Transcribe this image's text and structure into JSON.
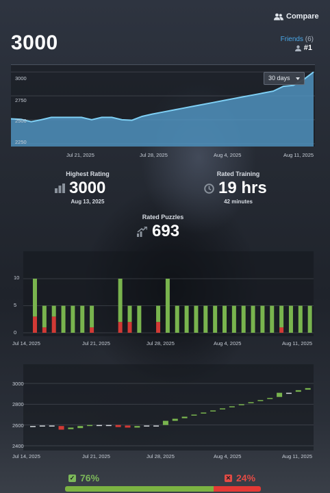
{
  "header": {
    "compare_label": "Compare",
    "rating": "3000",
    "friends_label": "Friends",
    "friends_count": "(6)",
    "rank": "#1"
  },
  "rating_chart": {
    "range_select": "30 days",
    "y_ticks": [
      "3000",
      "2750",
      "2500",
      "2250"
    ],
    "x_ticks": [
      "Jul 21, 2025",
      "Jul 28, 2025",
      "Aug 4, 2025",
      "Aug 11, 2025"
    ]
  },
  "stats": {
    "highest_title": "Highest Rating",
    "highest_value": "3000",
    "highest_date": "Aug 13, 2025",
    "training_title": "Rated Training",
    "training_value": "19 hrs",
    "training_sub": "42 minutes",
    "puzzles_title": "Rated Puzzles",
    "puzzles_value": "693"
  },
  "bars_chart": {
    "y_ticks": [
      "10",
      "5",
      "0"
    ],
    "x_ticks": [
      "Jul 14, 2025",
      "Jul 21, 2025",
      "Jul 28, 2025",
      "Aug 4, 2025",
      "Aug 11, 2025"
    ]
  },
  "candle_chart": {
    "y_ticks": [
      "3000",
      "2800",
      "2600",
      "2400"
    ],
    "x_ticks": [
      "Jul 14, 2025",
      "Jul 21, 2025",
      "Jul 28, 2025",
      "Aug 4, 2025",
      "Aug 11, 2025"
    ]
  },
  "summary": {
    "success_pct": "76%",
    "fail_pct": "24%",
    "success_fraction": 0.76,
    "success_color": "#7cb342",
    "fail_color": "#e53935"
  },
  "chart_data": [
    {
      "type": "area",
      "x": [
        "Jul 14",
        "Jul 15",
        "Jul 16",
        "Jul 17",
        "Jul 18",
        "Jul 19",
        "Jul 20",
        "Jul 21",
        "Jul 22",
        "Jul 23",
        "Jul 24",
        "Jul 25",
        "Jul 26",
        "Jul 27",
        "Jul 28",
        "Jul 29",
        "Jul 30",
        "Jul 31",
        "Aug 1",
        "Aug 2",
        "Aug 3",
        "Aug 4",
        "Aug 5",
        "Aug 6",
        "Aug 7",
        "Aug 8",
        "Aug 9",
        "Aug 10",
        "Aug 11",
        "Aug 12",
        "Aug 13"
      ],
      "values": [
        2510,
        2505,
        2480,
        2500,
        2525,
        2525,
        2525,
        2525,
        2500,
        2525,
        2525,
        2500,
        2495,
        2535,
        2560,
        2580,
        2600,
        2620,
        2640,
        2660,
        2680,
        2700,
        2720,
        2740,
        2760,
        2780,
        2800,
        2850,
        2860,
        2920,
        3000
      ],
      "ylim": [
        2220,
        3080
      ]
    },
    {
      "type": "bar",
      "stacked": true,
      "categories": [
        "Jul 14",
        "Jul 15",
        "Jul 16",
        "Jul 17",
        "Jul 18",
        "Jul 19",
        "Jul 20",
        "Jul 21",
        "Jul 22",
        "Jul 23",
        "Jul 24",
        "Jul 25",
        "Jul 26",
        "Jul 27",
        "Jul 28",
        "Jul 29",
        "Jul 30",
        "Jul 31",
        "Aug 1",
        "Aug 2",
        "Aug 3",
        "Aug 4",
        "Aug 5",
        "Aug 6",
        "Aug 7",
        "Aug 8",
        "Aug 9",
        "Aug 10",
        "Aug 11",
        "Aug 12",
        "Aug 13"
      ],
      "series": [
        {
          "values": [
            3,
            1,
            3,
            0,
            0,
            0,
            1,
            0,
            0,
            2,
            2,
            0,
            0,
            2,
            0,
            0,
            0,
            0,
            0,
            0,
            0,
            0,
            0,
            0,
            0,
            0,
            1,
            0,
            0,
            0,
            0
          ]
        },
        {
          "values": [
            7,
            4,
            2,
            5,
            5,
            5,
            4,
            0,
            0,
            8,
            3,
            5,
            0,
            3,
            10,
            5,
            5,
            5,
            5,
            5,
            5,
            5,
            5,
            5,
            5,
            5,
            4,
            5,
            5,
            5,
            5
          ]
        }
      ],
      "ylim": [
        0,
        12
      ]
    },
    {
      "type": "candlestick",
      "x": [
        "Jul 14",
        "Jul 15",
        "Jul 16",
        "Jul 17",
        "Jul 18",
        "Jul 19",
        "Jul 20",
        "Jul 21",
        "Jul 22",
        "Jul 23",
        "Jul 24",
        "Jul 25",
        "Jul 26",
        "Jul 27",
        "Jul 28",
        "Jul 29",
        "Jul 30",
        "Jul 31",
        "Aug 1",
        "Aug 2",
        "Aug 3",
        "Aug 4",
        "Aug 5",
        "Aug 6",
        "Aug 7",
        "Aug 8",
        "Aug 9",
        "Aug 10",
        "Aug 11",
        "Aug 12",
        "Aug 13"
      ],
      "open": [
        2590,
        2590,
        2595,
        2590,
        2560,
        2570,
        2590,
        2600,
        2600,
        2600,
        2595,
        2575,
        2590,
        2595,
        2600,
        2640,
        2665,
        2690,
        2710,
        2730,
        2750,
        2770,
        2790,
        2810,
        2830,
        2850,
        2870,
        2910,
        2920,
        2940,
        2960
      ],
      "close": [
        2590,
        2595,
        2590,
        2555,
        2575,
        2590,
        2600,
        2600,
        2600,
        2580,
        2575,
        2590,
        2595,
        2595,
        2640,
        2660,
        2680,
        2700,
        2720,
        2740,
        2760,
        2780,
        2800,
        2820,
        2840,
        2860,
        2910,
        2910,
        2935,
        2955,
        2975
      ],
      "ylim": [
        2380,
        3080
      ]
    }
  ]
}
